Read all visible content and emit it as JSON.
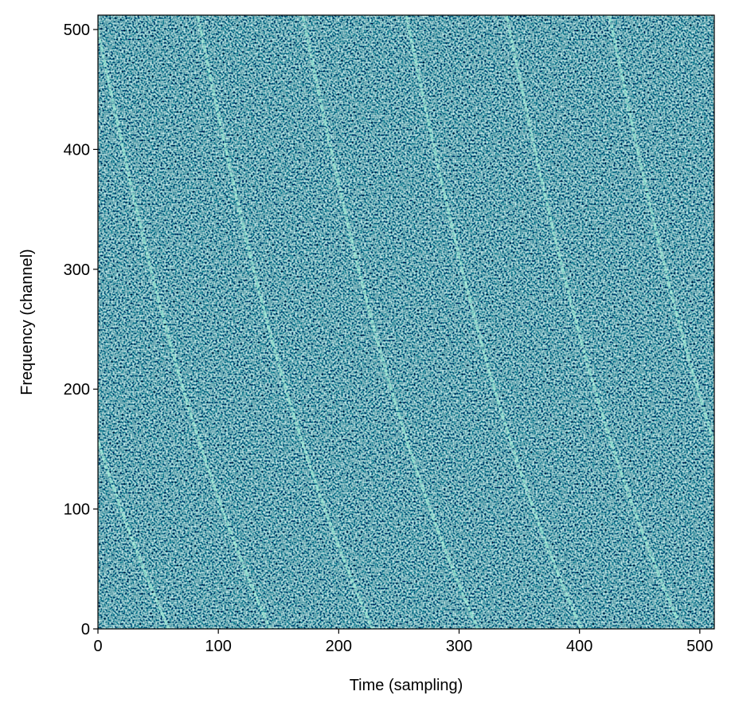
{
  "chart_data": {
    "type": "heatmap",
    "xlabel": "Time (sampling)",
    "ylabel": "Frequency (channel)",
    "xlim": [
      0,
      512
    ],
    "ylim": [
      0,
      512
    ],
    "xticks": [
      0,
      100,
      200,
      300,
      400,
      500
    ],
    "yticks": [
      0,
      100,
      200,
      300,
      400,
      500
    ]
  }
}
